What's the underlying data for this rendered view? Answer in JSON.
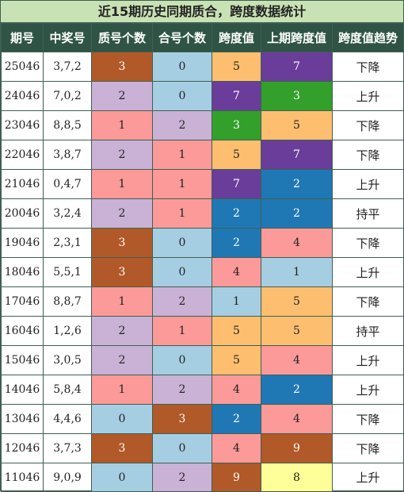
{
  "title": "近15期历史同期质合，跨度数据统计",
  "headers": [
    "期号",
    "中奖号",
    "质号个数",
    "合号个数",
    "跨度值",
    "上期跨度值",
    "跨度值趋势"
  ],
  "colors": {
    "0": "#a6cee3",
    "1": "#fb9a99",
    "2": "#c9b2d6",
    "3": "#b15928",
    "4": "#fb9a99",
    "5": "#fdbf6f",
    "7": "#6a3d9a",
    "9": "#b15928",
    "span2": "#1f78b4",
    "span3": "#33a02c",
    "span4": "#fb9a99",
    "span8": "#ffff99",
    "header": "#2f5446",
    "title_bg": "#c9e2b5"
  },
  "rows": [
    {
      "issue": "25046",
      "numbers": "3,7,2",
      "prime": "3",
      "composite": "0",
      "span": "5",
      "prev_span": "7",
      "trend": "下降"
    },
    {
      "issue": "24046",
      "numbers": "7,0,2",
      "prime": "2",
      "composite": "0",
      "span": "7",
      "prev_span": "3",
      "trend": "上升"
    },
    {
      "issue": "23046",
      "numbers": "8,8,5",
      "prime": "1",
      "composite": "2",
      "span": "3",
      "prev_span": "5",
      "trend": "下降"
    },
    {
      "issue": "22046",
      "numbers": "3,8,7",
      "prime": "2",
      "composite": "1",
      "span": "5",
      "prev_span": "7",
      "trend": "下降"
    },
    {
      "issue": "21046",
      "numbers": "0,4,7",
      "prime": "1",
      "composite": "1",
      "span": "7",
      "prev_span": "2",
      "trend": "上升"
    },
    {
      "issue": "20046",
      "numbers": "3,2,4",
      "prime": "2",
      "composite": "1",
      "span": "2",
      "prev_span": "2",
      "trend": "持平"
    },
    {
      "issue": "19046",
      "numbers": "2,3,1",
      "prime": "3",
      "composite": "0",
      "span": "2",
      "prev_span": "4",
      "trend": "下降"
    },
    {
      "issue": "18046",
      "numbers": "5,5,1",
      "prime": "3",
      "composite": "0",
      "span": "4",
      "prev_span": "1",
      "trend": "上升"
    },
    {
      "issue": "17046",
      "numbers": "8,8,7",
      "prime": "1",
      "composite": "2",
      "span": "1",
      "prev_span": "5",
      "trend": "下降"
    },
    {
      "issue": "16046",
      "numbers": "1,2,6",
      "prime": "2",
      "composite": "1",
      "span": "5",
      "prev_span": "5",
      "trend": "持平"
    },
    {
      "issue": "15046",
      "numbers": "3,0,5",
      "prime": "2",
      "composite": "0",
      "span": "5",
      "prev_span": "4",
      "trend": "上升"
    },
    {
      "issue": "14046",
      "numbers": "5,8,4",
      "prime": "1",
      "composite": "2",
      "span": "4",
      "prev_span": "2",
      "trend": "上升"
    },
    {
      "issue": "13046",
      "numbers": "4,4,6",
      "prime": "0",
      "composite": "3",
      "span": "2",
      "prev_span": "4",
      "trend": "下降"
    },
    {
      "issue": "12046",
      "numbers": "3,7,3",
      "prime": "3",
      "composite": "0",
      "span": "4",
      "prev_span": "9",
      "trend": "下降"
    },
    {
      "issue": "11046",
      "numbers": "9,0,9",
      "prime": "0",
      "composite": "2",
      "span": "9",
      "prev_span": "8",
      "trend": "上升"
    }
  ]
}
